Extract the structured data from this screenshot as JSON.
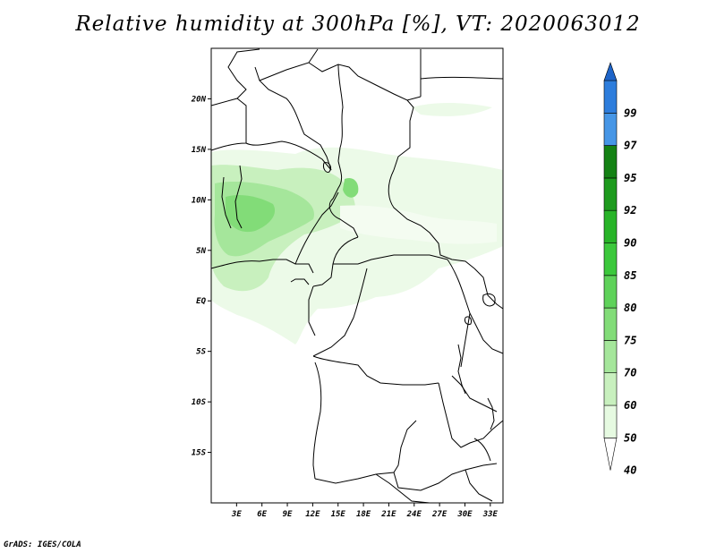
{
  "title": "Relative humidity at 300hPa [%], VT: 2020063012",
  "credit": "GrADS: IGES/COLA",
  "map": {
    "lon_range": [
      0,
      34.5
    ],
    "lat_range": [
      -20,
      25
    ],
    "lat_ticks": [
      {
        "value": 20,
        "label": "20N"
      },
      {
        "value": 15,
        "label": "15N"
      },
      {
        "value": 10,
        "label": "10N"
      },
      {
        "value": 5,
        "label": "5N"
      },
      {
        "value": 0,
        "label": "EQ"
      },
      {
        "value": -5,
        "label": "5S"
      },
      {
        "value": -10,
        "label": "10S"
      },
      {
        "value": -15,
        "label": "15S"
      }
    ],
    "lon_ticks": [
      {
        "value": 3,
        "label": "3E"
      },
      {
        "value": 6,
        "label": "6E"
      },
      {
        "value": 9,
        "label": "9E"
      },
      {
        "value": 12,
        "label": "12E"
      },
      {
        "value": 15,
        "label": "15E"
      },
      {
        "value": 18,
        "label": "18E"
      },
      {
        "value": 21,
        "label": "21E"
      },
      {
        "value": 24,
        "label": "24E"
      },
      {
        "value": 27,
        "label": "27E"
      },
      {
        "value": 30,
        "label": "30E"
      },
      {
        "value": 33,
        "label": "33E"
      }
    ]
  },
  "colorbar": {
    "levels": [
      "40",
      "50",
      "60",
      "70",
      "75",
      "80",
      "85",
      "90",
      "92",
      "95",
      "97",
      "99"
    ],
    "colors": [
      "#ffffff",
      "#e6fae1",
      "#c8f0be",
      "#a5e69b",
      "#82dc78",
      "#5fd25a",
      "#3cc83c",
      "#28b428",
      "#1e9b1e",
      "#148214",
      "#4696e6",
      "#2d7ddc",
      "#1e64c8"
    ]
  }
}
